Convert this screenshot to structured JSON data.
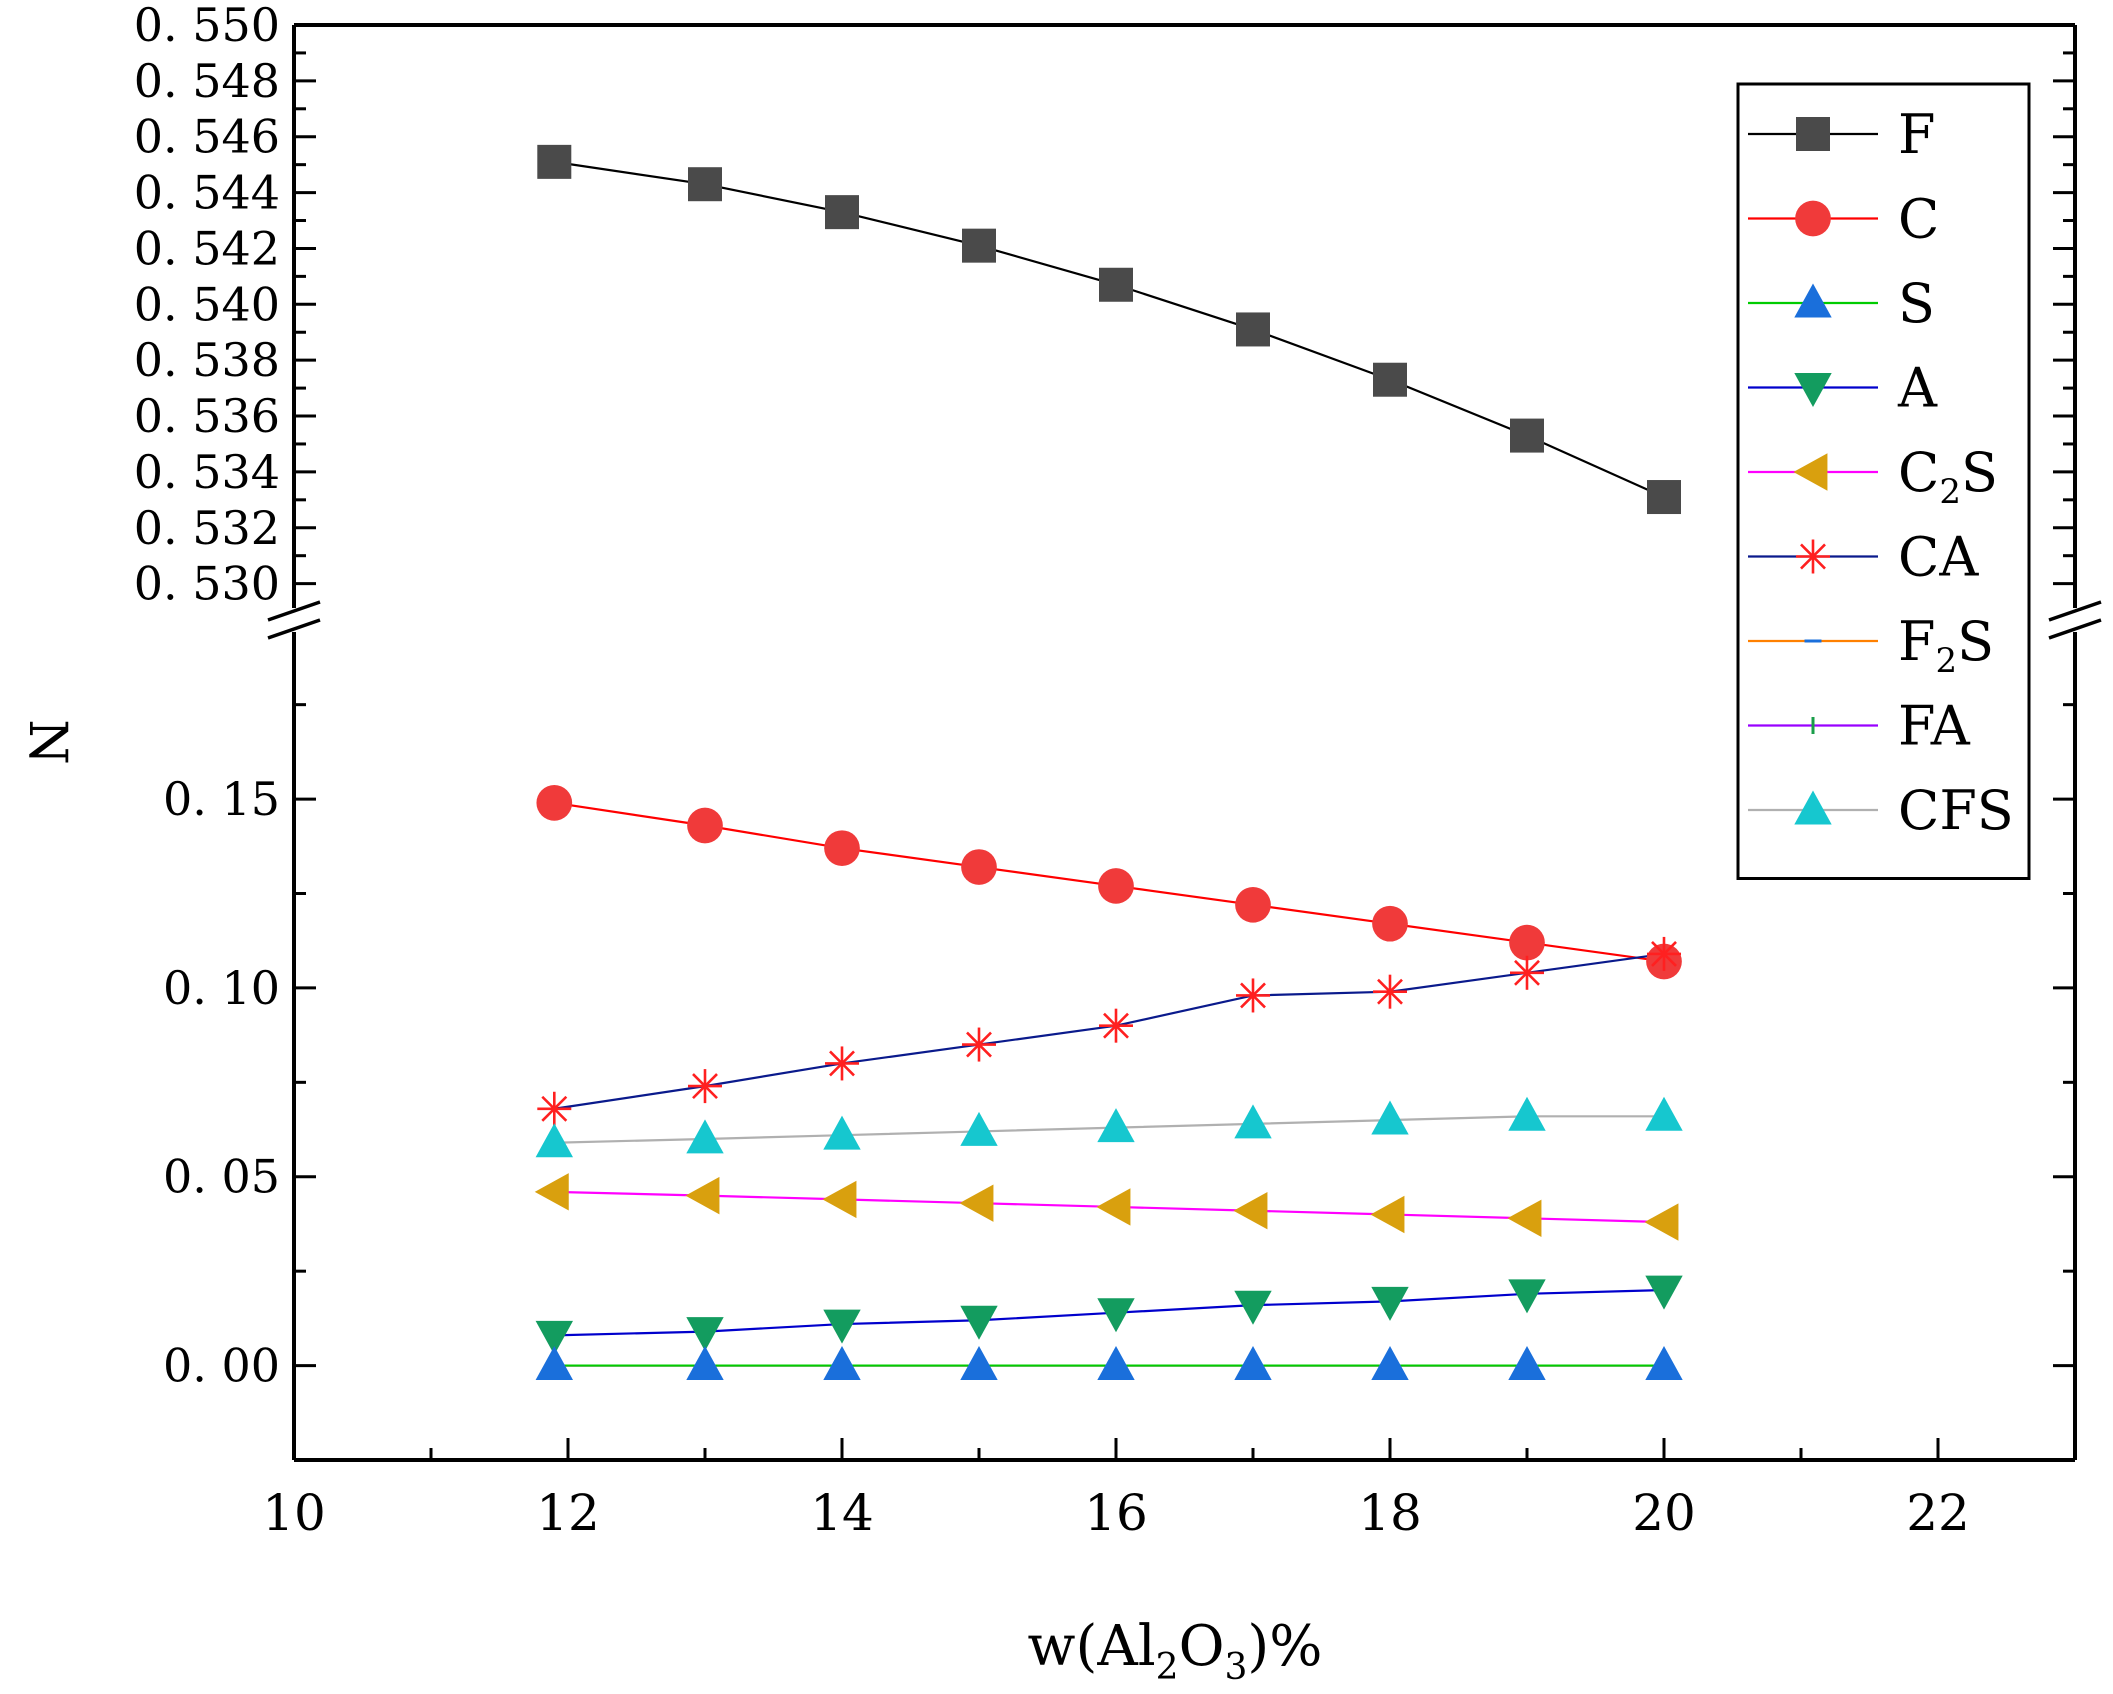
{
  "chart_data": {
    "type": "line",
    "title": "",
    "xlabel_parts": [
      "w(Al",
      "2",
      "O",
      "3",
      ")%"
    ],
    "ylabel": "N",
    "x": [
      11.9,
      13,
      14,
      15,
      16,
      17,
      18,
      19,
      20
    ],
    "xlim": [
      10,
      23
    ],
    "xticks": [
      "10",
      "12",
      "14",
      "16",
      "18",
      "20",
      "22"
    ],
    "y_break": {
      "lower_range": [
        -0.025,
        0.19
      ],
      "upper_range": [
        0.5297,
        0.55
      ]
    },
    "yticks_lower": [
      "0. 00",
      "0. 05",
      "0. 10",
      "0. 15"
    ],
    "yticks_upper": [
      "0. 530",
      "0. 532",
      "0. 534",
      "0. 536",
      "0. 538",
      "0. 540",
      "0. 542",
      "0. 544",
      "0. 546",
      "0. 548",
      "0. 550"
    ],
    "legend_position": "top-right",
    "series": [
      {
        "name": "F",
        "sub": "",
        "color": "#000000",
        "marker": "square",
        "marker_color": "#4a4a4a",
        "values": [
          0.5451,
          0.5443,
          0.5433,
          0.5421,
          0.5407,
          0.5391,
          0.5373,
          0.5353,
          0.5331
        ]
      },
      {
        "name": "C",
        "sub": "",
        "color": "#ff0000",
        "marker": "circle",
        "marker_color": "#f03a3a",
        "values": [
          0.149,
          0.143,
          0.137,
          0.132,
          0.127,
          0.122,
          0.117,
          0.112,
          0.107
        ]
      },
      {
        "name": "S",
        "sub": "",
        "color": "#00cc00",
        "marker": "triangle-up",
        "marker_color": "#1a6fdb",
        "values": [
          0.0,
          0.0,
          0.0,
          0.0,
          0.0,
          0.0,
          0.0,
          0.0,
          0.0
        ]
      },
      {
        "name": "A",
        "sub": "",
        "color": "#0000cc",
        "marker": "triangle-down",
        "marker_color": "#139c5f",
        "values": [
          0.008,
          0.009,
          0.011,
          0.012,
          0.014,
          0.016,
          0.017,
          0.019,
          0.02
        ]
      },
      {
        "name": "C",
        "sub": "2",
        "suffix": "S",
        "color": "#ff00ff",
        "marker": "triangle-left",
        "marker_color": "#d9a00e",
        "values": [
          0.046,
          0.045,
          0.044,
          0.043,
          0.042,
          0.041,
          0.04,
          0.039,
          0.038
        ]
      },
      {
        "name": "CA",
        "sub": "",
        "color": "#0a1a8c",
        "marker": "asterisk",
        "marker_color": "#ff2020",
        "values": [
          0.068,
          0.074,
          0.08,
          0.085,
          0.09,
          0.098,
          0.099,
          0.104,
          0.109
        ]
      },
      {
        "name": "F",
        "sub": "2",
        "suffix": "S",
        "color": "#ff8000",
        "marker": "dash",
        "marker_color": "#1a6fdb",
        "values": [
          0.0,
          0.0,
          0.0,
          0.0,
          0.0,
          0.0,
          0.0,
          0.0,
          0.0
        ]
      },
      {
        "name": "FA",
        "sub": "",
        "color": "#9900ff",
        "marker": "vbar",
        "marker_color": "#1a9e4a",
        "values": [
          0.0,
          0.0,
          0.0,
          0.0,
          0.0,
          0.0,
          0.0,
          0.0,
          0.0
        ]
      },
      {
        "name": "CFS",
        "sub": "",
        "color": "#b0b0b0",
        "marker": "triangle-up",
        "marker_color": "#16c7cf",
        "values": [
          0.059,
          0.06,
          0.061,
          0.062,
          0.063,
          0.064,
          0.065,
          0.066,
          0.066
        ]
      }
    ]
  }
}
